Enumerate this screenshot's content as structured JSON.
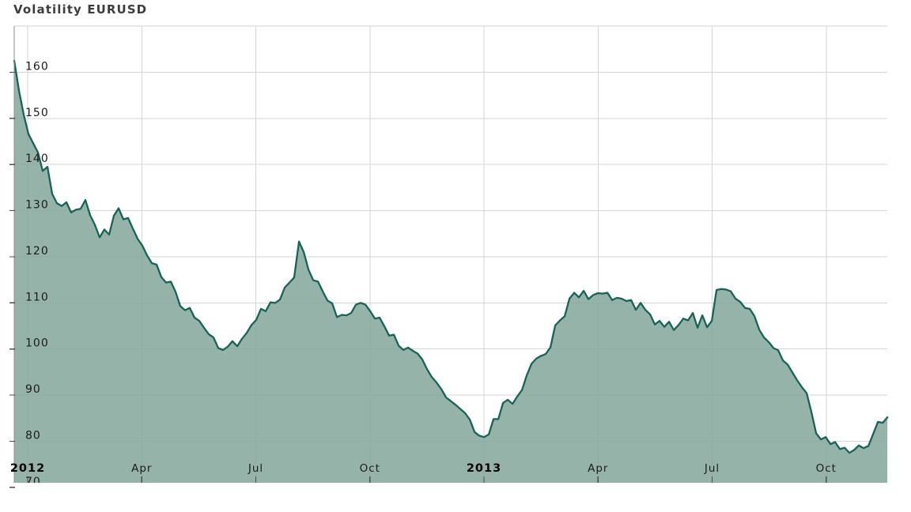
{
  "title": "Volatility EURUSD",
  "colors": {
    "fill": "#85A79C",
    "fill_opacity": 0.86,
    "line": "#176457",
    "grid": "#D6D6D6",
    "top_border": "#CFCFCF",
    "axis": "#8C8C8C",
    "tick": "#4D4D4D",
    "title_text": "#3D3D3D",
    "y_label_text": "#1B1B1B",
    "x_label_text": "#1C1C1C",
    "year_label_text": "#000000"
  },
  "chart_data": {
    "type": "area",
    "title": "Volatility EURUSD",
    "legend": null,
    "grid": true,
    "x_unit": "months since 2012-01-01",
    "x_range": [
      -0.354,
      22.606
    ],
    "y_visible_range": [
      71,
      170
    ],
    "y_ticks": [
      70,
      80,
      90,
      100,
      110,
      120,
      130,
      140,
      150,
      160
    ],
    "x_ticks": [
      {
        "m": 0,
        "label": "2012",
        "bold": true
      },
      {
        "m": 3,
        "label": "Apr",
        "bold": false
      },
      {
        "m": 6,
        "label": "Jul",
        "bold": false
      },
      {
        "m": 9,
        "label": "Oct",
        "bold": false
      },
      {
        "m": 12,
        "label": "2013",
        "bold": true
      },
      {
        "m": 15,
        "label": "Apr",
        "bold": false
      },
      {
        "m": 18,
        "label": "Jul",
        "bold": false
      },
      {
        "m": 21,
        "label": "Oct",
        "bold": false
      }
    ],
    "series": [
      {
        "name": "Volatility EURUSD",
        "sampling": "uniform",
        "x_start": -0.354,
        "x_step": 0.1248,
        "values": [
          162.5,
          156.0,
          150.8,
          146.6,
          144.6,
          142.6,
          138.6,
          139.5,
          133.6,
          131.6,
          131.0,
          131.8,
          129.6,
          130.2,
          130.4,
          132.3,
          129.0,
          126.9,
          124.2,
          125.9,
          124.8,
          128.9,
          130.5,
          128.1,
          128.4,
          126.1,
          123.9,
          122.4,
          120.3,
          118.6,
          118.3,
          115.6,
          114.4,
          114.6,
          112.4,
          109.3,
          108.4,
          108.9,
          106.8,
          106.1,
          104.6,
          103.2,
          102.5,
          100.2,
          99.8,
          100.5,
          101.7,
          100.6,
          102.2,
          103.5,
          105.2,
          106.3,
          108.7,
          108.2,
          110.1,
          110.0,
          110.7,
          113.3,
          114.4,
          115.5,
          123.3,
          121.0,
          117.2,
          114.9,
          114.6,
          112.5,
          110.5,
          109.9,
          106.9,
          107.4,
          107.3,
          107.8,
          109.6,
          110.0,
          109.6,
          108.2,
          106.6,
          106.8,
          104.9,
          102.9,
          103.1,
          100.7,
          99.8,
          100.3,
          99.6,
          99.0,
          97.7,
          95.6,
          93.9,
          92.7,
          91.3,
          89.5,
          88.7,
          87.9,
          87.0,
          86.1,
          84.7,
          82.0,
          81.2,
          80.9,
          81.5,
          84.8,
          84.8,
          88.3,
          89.0,
          88.1,
          89.7,
          91.1,
          94.3,
          96.8,
          97.9,
          98.5,
          98.9,
          100.4,
          105.1,
          106.2,
          107.1,
          110.9,
          112.2,
          111.2,
          112.6,
          110.8,
          111.7,
          112.1,
          112.0,
          112.2,
          110.6,
          111.1,
          110.9,
          110.4,
          110.6,
          108.5,
          110.0,
          108.5,
          107.5,
          105.3,
          106.1,
          104.8,
          105.9,
          104.1,
          105.2,
          106.6,
          106.2,
          107.8,
          104.6,
          107.3,
          104.7,
          106.1,
          112.8,
          113.0,
          112.9,
          112.5,
          110.9,
          110.2,
          108.9,
          108.7,
          107.1,
          104.2,
          102.5,
          101.5,
          100.2,
          99.7,
          97.5,
          96.6,
          94.9,
          93.2,
          91.7,
          90.4,
          86.3,
          81.7,
          80.4,
          80.9,
          79.4,
          79.8,
          78.3,
          78.6,
          77.5,
          78.1,
          79.1,
          78.5,
          79.0,
          81.6,
          84.2,
          84.0,
          85.2
        ]
      }
    ]
  }
}
